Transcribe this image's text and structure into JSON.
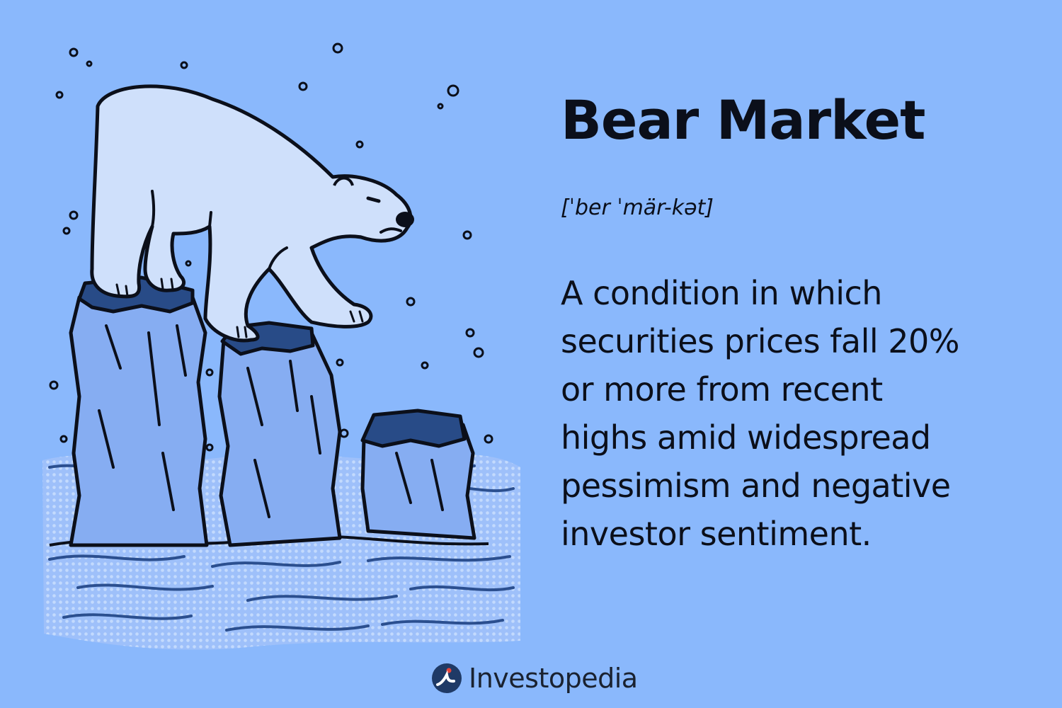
{
  "heading": {
    "title": "Bear Market",
    "pronunciation": "[ˈber ˈmär-kət]"
  },
  "definition": {
    "lines": [
      "A condition in which",
      "securities prices fall 20%",
      "or more from recent",
      "highs amid widespread",
      "pessimism and negative",
      "investor sentiment."
    ]
  },
  "brand": {
    "name": "Investopedia"
  },
  "colors": {
    "background": "#8ab8fc",
    "bear_fill": "#cfe0fb",
    "ice_fill": "#86adf2",
    "ice_top": "#284b87",
    "water": "#a9c9fb",
    "ink": "#0b0f1a"
  },
  "illustration": {
    "subject": "polar-bear-on-melting-ice-pillars"
  }
}
